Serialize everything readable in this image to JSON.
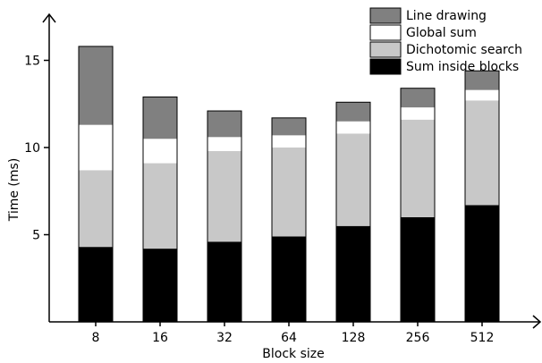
{
  "chart_data": {
    "type": "bar",
    "stacked": true,
    "title": "",
    "xlabel": "Block size",
    "ylabel": "Time (ms)",
    "ylim": [
      0,
      18
    ],
    "yticks": [
      5,
      10,
      15
    ],
    "grid": false,
    "legend_position": "top-right",
    "categories": [
      "8",
      "16",
      "32",
      "64",
      "128",
      "256",
      "512"
    ],
    "series": [
      {
        "name": "Sum inside blocks",
        "color": "#000000",
        "values": [
          4.3,
          4.2,
          4.6,
          4.9,
          5.5,
          6.0,
          6.7
        ]
      },
      {
        "name": "Dichotomic search",
        "color": "#c8c8c8",
        "values": [
          4.4,
          4.9,
          5.2,
          5.1,
          5.3,
          5.6,
          6.0
        ]
      },
      {
        "name": "Global sum",
        "color": "#ffffff",
        "values": [
          2.6,
          1.4,
          0.8,
          0.7,
          0.7,
          0.7,
          0.6
        ]
      },
      {
        "name": "Line drawing",
        "color": "#808080",
        "values": [
          4.5,
          2.4,
          1.5,
          1.0,
          1.1,
          1.1,
          1.1
        ]
      }
    ]
  }
}
